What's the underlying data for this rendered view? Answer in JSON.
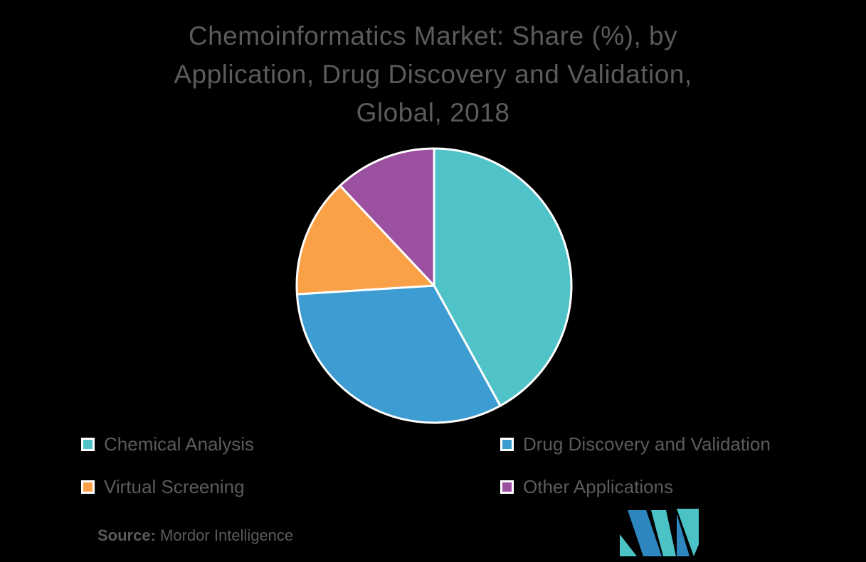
{
  "page": {
    "background": "#000000",
    "text_color": "#5B5B5D"
  },
  "title": {
    "full": "Chemoinformatics Market: Share (%), by Application, Drug Discovery and Validation, Global, 2018",
    "lines": [
      "Chemoinformatics Market: Share (%), by",
      "Application, Drug Discovery and Validation,",
      "Global, 2018"
    ]
  },
  "chart_data": {
    "type": "pie",
    "title": "Chemoinformatics Market: Share (%), by Application, Drug Discovery and Validation, Global, 2018",
    "unit": "%",
    "start_angle": "12 o'clock",
    "direction": "clockwise",
    "slice_border_color": "#FFFFFF",
    "legend_position": "bottom",
    "slices": [
      {
        "label": "Chemical Analysis",
        "value": 42,
        "color": "#4FC3C8"
      },
      {
        "label": "Drug Discovery and Validation",
        "value": 32,
        "color": "#3D9CD1"
      },
      {
        "label": "Virtual Screening",
        "value": 14,
        "color": "#FAA047"
      },
      {
        "label": "Other Applications",
        "value": 12,
        "color": "#9C50A0"
      }
    ]
  },
  "source": {
    "label": "Source:",
    "name": "Mordor Intelligence"
  },
  "logo": {
    "alt": "Mordor Intelligence",
    "blue": "#2E86BE",
    "teal": "#4BC2C6"
  }
}
